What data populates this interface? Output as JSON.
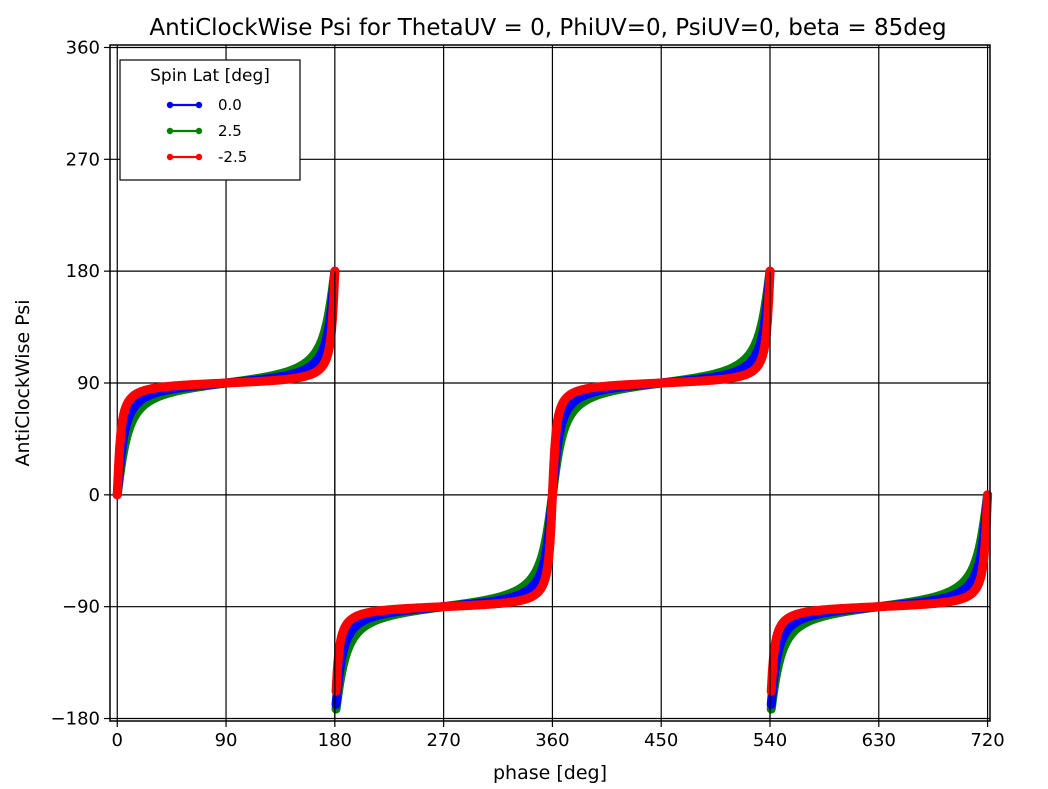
{
  "chart_data": {
    "type": "line",
    "title": "AntiClockWise Psi for ThetaUV = 0, PhiUV=0, PsiUV=0, beta = 85deg",
    "xlabel": "phase [deg]",
    "ylabel": "AntiClockWise Psi",
    "xlim": [
      -6,
      722
    ],
    "ylim": [
      -182,
      362
    ],
    "x_ticks": [
      0,
      90,
      180,
      270,
      360,
      450,
      540,
      630,
      720
    ],
    "y_ticks": [
      -180,
      -90,
      0,
      90,
      180,
      270,
      360
    ],
    "x_tick_labels": [
      "0",
      "90",
      "180",
      "270",
      "360",
      "450",
      "540",
      "630",
      "720"
    ],
    "y_tick_labels": [
      "−180",
      "−90",
      "0",
      "90",
      "180",
      "270",
      "360"
    ],
    "grid": true,
    "legend": {
      "title": "Spin Lat [deg]",
      "placement": "top-left",
      "entries": [
        "0.0",
        "2.5",
        "-2.5"
      ]
    },
    "series": [
      {
        "name": "0.0",
        "color": "#0000ff",
        "spin_lat": 0.0
      },
      {
        "name": "2.5",
        "color": "#008000",
        "spin_lat": 2.5
      },
      {
        "name": "-2.5",
        "color": "#ff0000",
        "spin_lat": -2.5
      }
    ],
    "x": [
      0,
      180,
      360,
      540,
      720
    ],
    "series_values_at_x": {
      "0.0": [
        0,
        180,
        0,
        180,
        0
      ],
      "2.5": [
        0,
        180,
        0,
        180,
        0
      ],
      "-2.5": [
        0,
        180,
        0,
        180,
        0
      ]
    },
    "series_values_after_wrap": [
      -180,
      -180
    ],
    "beta_deg": 85
  }
}
